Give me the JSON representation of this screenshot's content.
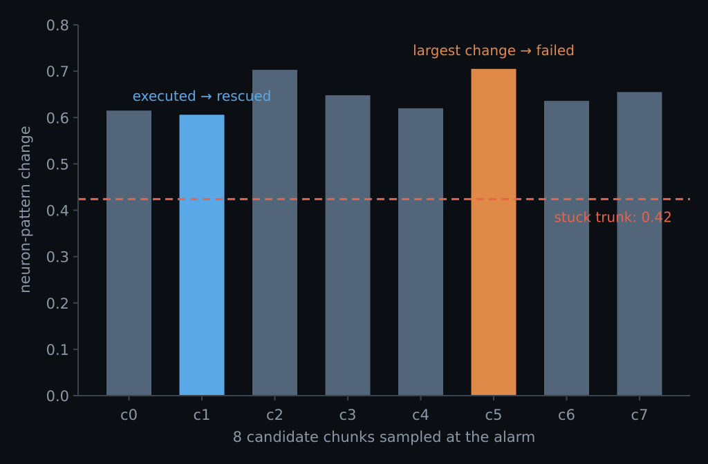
{
  "chart_data": {
    "type": "bar",
    "categories": [
      "c0",
      "c1",
      "c2",
      "c3",
      "c4",
      "c5",
      "c6",
      "c7"
    ],
    "values": [
      0.615,
      0.606,
      0.703,
      0.648,
      0.62,
      0.705,
      0.636,
      0.655
    ],
    "bar_colors": [
      "#536579",
      "#5ba8e6",
      "#536579",
      "#536579",
      "#536579",
      "#e08a4a",
      "#536579",
      "#536579"
    ],
    "xlabel": "8 candidate chunks sampled at the alarm",
    "ylabel": "neuron-pattern change",
    "ylim": [
      0,
      0.8
    ],
    "yticks": [
      0.0,
      0.1,
      0.2,
      0.3,
      0.4,
      0.5,
      0.6,
      0.7,
      0.8
    ],
    "ytick_labels": [
      "0.0",
      "0.1",
      "0.2",
      "0.3",
      "0.4",
      "0.5",
      "0.6",
      "0.7",
      "0.8"
    ],
    "grid": false,
    "reference_line": {
      "value": 0.424,
      "label": "stuck trunk: 0.42",
      "color": "#e8634a",
      "style": "dashed"
    },
    "annotations": [
      {
        "category": "c1",
        "text": "executed → rescued",
        "color": "#5ba8e6"
      },
      {
        "category": "c5",
        "text": "largest change → failed",
        "color": "#e08a4a"
      }
    ],
    "colors": {
      "background": "#0b0e13",
      "axis": "#3a4552",
      "text": "#8a98a8",
      "bar_default": "#536579",
      "bar_executed": "#5ba8e6",
      "bar_failed": "#e08a4a"
    }
  }
}
